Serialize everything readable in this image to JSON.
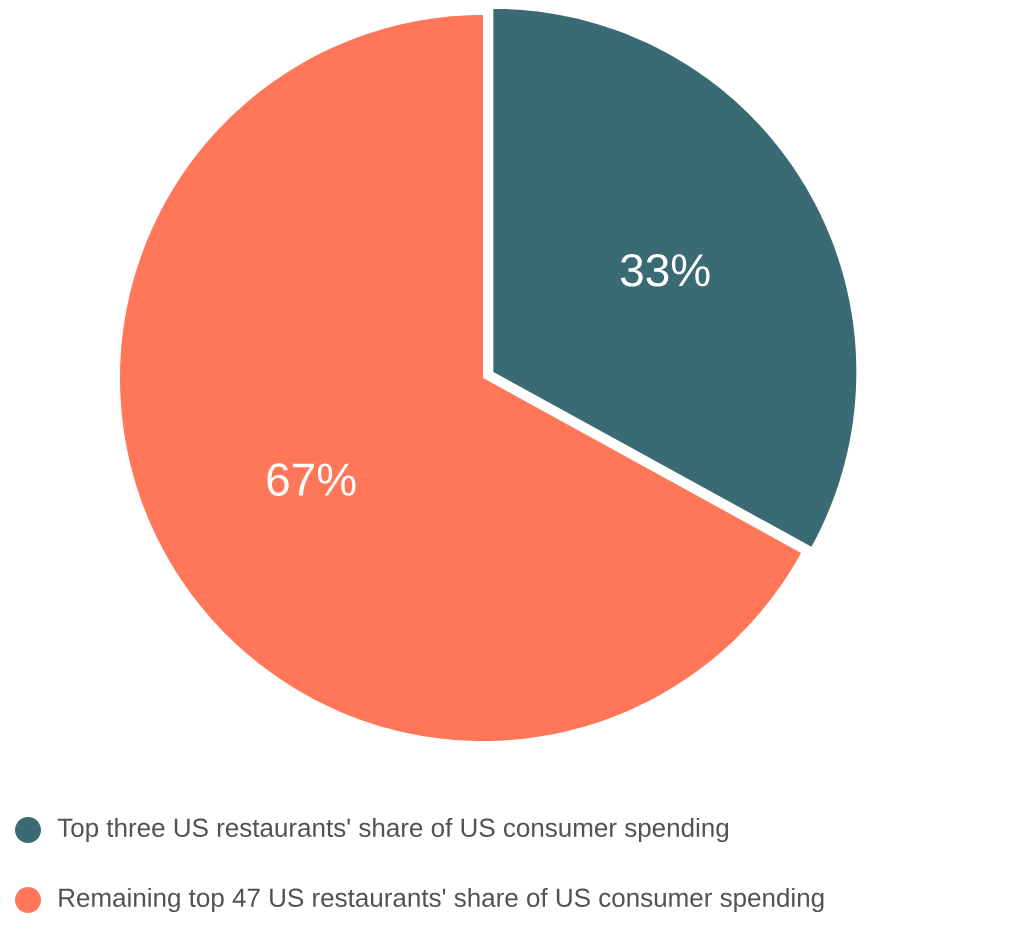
{
  "chart_data": {
    "type": "pie",
    "categories": [
      "Top three US restaurants' share of US consumer spending",
      "Remaining top 47 US restaurants' share of US consumer spending"
    ],
    "values": [
      33,
      67
    ],
    "colors": [
      "#3a6b75",
      "#ff7658"
    ],
    "value_labels": [
      "33%",
      "67%"
    ],
    "legend": "bottom"
  }
}
